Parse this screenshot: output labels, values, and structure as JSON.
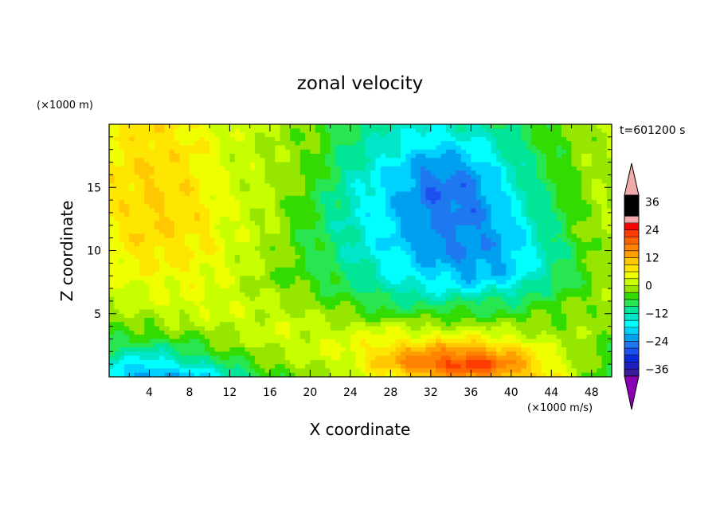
{
  "chart_data": {
    "type": "heatmap",
    "title": "zonal velocity",
    "xlabel": "X coordinate",
    "ylabel": "Z coordinate",
    "x_unit": "(×1000 m/s)",
    "y_unit": "(×1000 m)",
    "time_label": "t=601200 s",
    "xlim": [
      0,
      50
    ],
    "ylim": [
      0,
      20
    ],
    "x_ticks": [
      4,
      8,
      12,
      16,
      20,
      24,
      28,
      32,
      36,
      40,
      44,
      48
    ],
    "y_ticks": [
      5,
      10,
      15
    ],
    "colorbar": {
      "levels": [
        -42,
        -39,
        -36,
        -33,
        -30,
        -27,
        -24,
        -21,
        -18,
        -15,
        -12,
        -9,
        -6,
        -3,
        0,
        3,
        6,
        9,
        12,
        15,
        18,
        21,
        24,
        27,
        30,
        33,
        36,
        39,
        42
      ],
      "tick_labels": [
        "36",
        "24",
        "12",
        "0",
        "−12",
        "−24",
        "−36"
      ],
      "tick_values": [
        36,
        24,
        12,
        0,
        -12,
        -24,
        -36
      ],
      "colors": [
        "#8c00b4",
        "#3a1a9e",
        "#1e1ec0",
        "#0a28dc",
        "#1e50f0",
        "#1e78f0",
        "#00a0f0",
        "#00d2ff",
        "#00ffff",
        "#00e6c8",
        "#00e696",
        "#28e650",
        "#32dc00",
        "#96e600",
        "#c8ff00",
        "#f0ff00",
        "#ffe600",
        "#ffc800",
        "#ffa000",
        "#ff8200",
        "#ff6400",
        "#ff3c00",
        "#ff0000",
        "#f0aaaa"
      ]
    },
    "field_samples": {
      "x": [
        0,
        4,
        8,
        12,
        16,
        20,
        24,
        28,
        32,
        36,
        40,
        44,
        48,
        50
      ],
      "z": [
        0,
        1,
        2,
        3,
        4,
        5,
        6,
        7,
        8,
        10,
        12,
        14,
        16,
        18,
        20
      ],
      "u": [
        [
          -18,
          -24,
          -20,
          -14,
          -6,
          -2,
          0,
          6,
          12,
          14,
          12,
          6,
          -4,
          -6
        ],
        [
          -14,
          -18,
          -14,
          -8,
          -3,
          0,
          3,
          12,
          20,
          24,
          16,
          6,
          -4,
          -6
        ],
        [
          -10,
          -12,
          -8,
          -4,
          0,
          2,
          4,
          10,
          14,
          16,
          10,
          3,
          -3,
          -5
        ],
        [
          -6,
          -6,
          -4,
          -1,
          2,
          2,
          3,
          5,
          6,
          6,
          4,
          0,
          -2,
          -4
        ],
        [
          -3,
          -2,
          -1,
          1,
          2,
          1,
          1,
          1,
          0,
          0,
          -1,
          -2,
          -1,
          -2
        ],
        [
          -1,
          0,
          2,
          2,
          1,
          0,
          -3,
          -5,
          -6,
          -5,
          -6,
          -3,
          -1,
          -2
        ],
        [
          1,
          2,
          3,
          2,
          0,
          -2,
          -5,
          -9,
          -10,
          -9,
          -9,
          -5,
          -2,
          -1
        ],
        [
          2,
          3,
          4,
          2,
          -1,
          -4,
          -8,
          -12,
          -16,
          -16,
          -14,
          -8,
          -3,
          -1
        ],
        [
          3,
          5,
          5,
          2,
          -2,
          -5,
          -10,
          -15,
          -18,
          -22,
          -19,
          -10,
          -3,
          0
        ],
        [
          5,
          8,
          7,
          3,
          -1,
          -6,
          -12,
          -18,
          -23,
          -24,
          -21,
          -11,
          -3,
          0
        ],
        [
          6,
          9,
          8,
          3,
          0,
          -6,
          -13,
          -19,
          -24,
          -25,
          -19,
          -9,
          -1,
          0
        ],
        [
          7,
          9,
          8,
          3,
          0,
          -5,
          -13,
          -20,
          -26,
          -26,
          -16,
          -8,
          -1,
          0
        ],
        [
          7,
          9,
          7,
          2,
          0,
          -4,
          -12,
          -19,
          -25,
          -24,
          -14,
          -6,
          -1,
          0
        ],
        [
          6,
          8,
          7,
          2,
          0,
          -3,
          -10,
          -15,
          -20,
          -18,
          -11,
          -5,
          -1,
          0
        ],
        [
          5,
          8,
          6,
          2,
          0,
          -2,
          -8,
          -12,
          -14,
          -12,
          -8,
          -4,
          -1,
          0
        ]
      ]
    }
  }
}
